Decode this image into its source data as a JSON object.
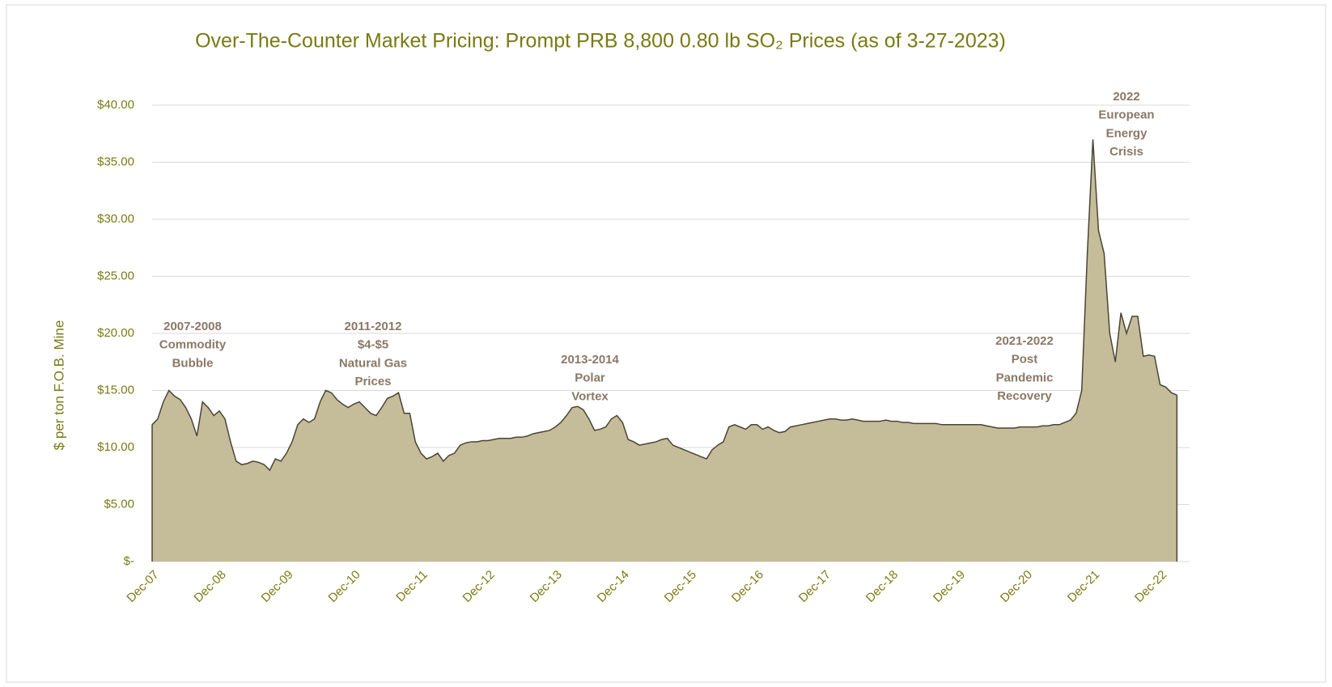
{
  "chart_data": {
    "type": "area",
    "title": "Over-The-Counter Market Pricing:  Prompt PRB 8,800 0.80 lb SO₂ Prices (as of 3-27-2023)",
    "y_label": "$ per ton F.O.B. Mine",
    "fill_color": "#c5bd99",
    "line_color": "#4a4535",
    "grid": true,
    "ylim": [
      0,
      40
    ],
    "yticks": [
      {
        "value": 0,
        "label": "$-"
      },
      {
        "value": 5,
        "label": "$5.00"
      },
      {
        "value": 10,
        "label": "$10.00"
      },
      {
        "value": 15,
        "label": "$15.00"
      },
      {
        "value": 20,
        "label": "$20.00"
      },
      {
        "value": 25,
        "label": "$25.00"
      },
      {
        "value": 30,
        "label": "$30.00"
      },
      {
        "value": 35,
        "label": "$35.00"
      },
      {
        "value": 40,
        "label": "$40.00"
      }
    ],
    "categories": [
      "Dec-07",
      null,
      null,
      null,
      null,
      null,
      null,
      null,
      null,
      null,
      null,
      null,
      "Dec-08",
      null,
      null,
      null,
      null,
      null,
      null,
      null,
      null,
      null,
      null,
      null,
      "Dec-09",
      null,
      null,
      null,
      null,
      null,
      null,
      null,
      null,
      null,
      null,
      null,
      "Dec-10",
      null,
      null,
      null,
      null,
      null,
      null,
      null,
      null,
      null,
      null,
      null,
      "Dec-11",
      null,
      null,
      null,
      null,
      null,
      null,
      null,
      null,
      null,
      null,
      null,
      "Dec-12",
      null,
      null,
      null,
      null,
      null,
      null,
      null,
      null,
      null,
      null,
      null,
      "Dec-13",
      null,
      null,
      null,
      null,
      null,
      null,
      null,
      null,
      null,
      null,
      null,
      "Dec-14",
      null,
      null,
      null,
      null,
      null,
      null,
      null,
      null,
      null,
      null,
      null,
      "Dec-15",
      null,
      null,
      null,
      null,
      null,
      null,
      null,
      null,
      null,
      null,
      null,
      "Dec-16",
      null,
      null,
      null,
      null,
      null,
      null,
      null,
      null,
      null,
      null,
      null,
      "Dec-17",
      null,
      null,
      null,
      null,
      null,
      null,
      null,
      null,
      null,
      null,
      null,
      "Dec-18",
      null,
      null,
      null,
      null,
      null,
      null,
      null,
      null,
      null,
      null,
      null,
      "Dec-19",
      null,
      null,
      null,
      null,
      null,
      null,
      null,
      null,
      null,
      null,
      null,
      "Dec-20",
      null,
      null,
      null,
      null,
      null,
      null,
      null,
      null,
      null,
      null,
      null,
      "Dec-21",
      null,
      null,
      null,
      null,
      null,
      null,
      null,
      null,
      null,
      null,
      null,
      "Dec-22",
      null,
      null,
      null
    ],
    "values": [
      12,
      12.5,
      14,
      15,
      14.5,
      14.2,
      13.5,
      12.5,
      11,
      14,
      13.5,
      12.8,
      13.2,
      12.5,
      10.5,
      8.8,
      8.5,
      8.6,
      8.8,
      8.7,
      8.5,
      8,
      9,
      8.8,
      9.5,
      10.5,
      12,
      12.5,
      12.2,
      12.5,
      14,
      15,
      14.8,
      14.2,
      13.8,
      13.5,
      13.8,
      14,
      13.5,
      13,
      12.8,
      13.5,
      14.3,
      14.5,
      14.8,
      13,
      13,
      10.5,
      9.5,
      9,
      9.2,
      9.5,
      8.8,
      9.3,
      9.5,
      10.2,
      10.4,
      10.5,
      10.5,
      10.6,
      10.6,
      10.7,
      10.8,
      10.8,
      10.8,
      10.9,
      10.9,
      11,
      11.2,
      11.3,
      11.4,
      11.5,
      11.8,
      12.2,
      12.8,
      13.5,
      13.6,
      13.3,
      12.5,
      11.5,
      11.6,
      11.8,
      12.5,
      12.8,
      12.2,
      10.7,
      10.5,
      10.2,
      10.3,
      10.4,
      10.5,
      10.7,
      10.8,
      10.2,
      10,
      9.8,
      9.6,
      9.4,
      9.2,
      9,
      9.8,
      10.2,
      10.5,
      11.8,
      12,
      11.8,
      11.6,
      12,
      12,
      11.6,
      11.8,
      11.5,
      11.3,
      11.4,
      11.8,
      11.9,
      12,
      12.1,
      12.2,
      12.3,
      12.4,
      12.5,
      12.5,
      12.4,
      12.4,
      12.5,
      12.4,
      12.3,
      12.3,
      12.3,
      12.3,
      12.4,
      12.3,
      12.3,
      12.2,
      12.2,
      12.1,
      12.1,
      12.1,
      12.1,
      12.1,
      12,
      12,
      12,
      12,
      12,
      12,
      12,
      12,
      11.9,
      11.8,
      11.7,
      11.7,
      11.7,
      11.7,
      11.8,
      11.8,
      11.8,
      11.8,
      11.9,
      11.9,
      12,
      12,
      12.2,
      12.4,
      13,
      15,
      27,
      37,
      29,
      27,
      20,
      17.5,
      21.8,
      20,
      21.5,
      21.5,
      18,
      18.1,
      18,
      15.5,
      15.3,
      14.8,
      14.6
    ],
    "annotations": [
      [
        "2007-2008",
        "Commodity",
        "Bubble"
      ],
      [
        "2011-2012",
        "$4-$5",
        "Natural Gas",
        "Prices"
      ],
      [
        "2013-2014",
        "Polar",
        "Vortex"
      ],
      [
        "2021-2022",
        "Post",
        "Pandemic",
        "Recovery"
      ],
      [
        "2022",
        "European",
        "Energy",
        "Crisis"
      ]
    ]
  }
}
